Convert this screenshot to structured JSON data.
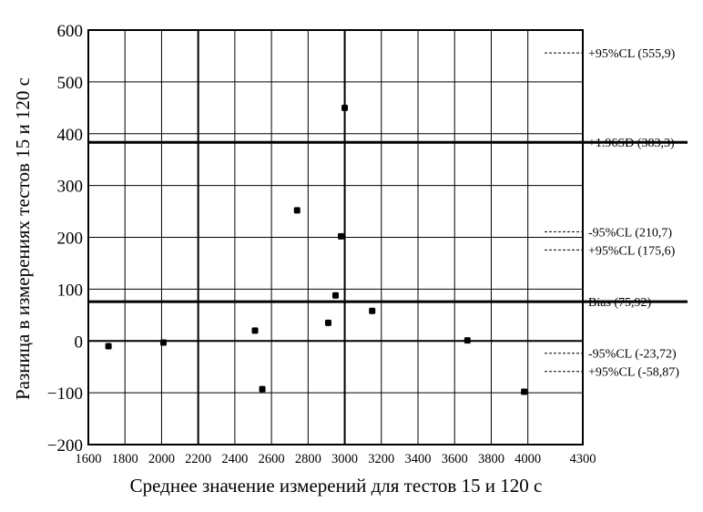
{
  "chart_data": {
    "type": "scatter",
    "xlabel": "Среднее значение измерений для тестов 15 и 120 с",
    "ylabel": "Разница в измерениях тестов 15 и 120 с",
    "xlim": [
      1600,
      4300
    ],
    "ylim": [
      -200,
      600
    ],
    "x_ticks": [
      "1600",
      "1800",
      "2000",
      "2200",
      "2400",
      "2600",
      "2800",
      "3000",
      "3200",
      "3400",
      "3600",
      "3800",
      "4000",
      "4300"
    ],
    "x_tick_values": [
      1600,
      1800,
      2000,
      2200,
      2400,
      2600,
      2800,
      3000,
      3200,
      3400,
      3600,
      3800,
      4000,
      4300
    ],
    "y_ticks": [
      "600",
      "500",
      "400",
      "300",
      "200",
      "100",
      "0",
      "−100",
      "−200"
    ],
    "y_tick_values": [
      600,
      500,
      400,
      300,
      200,
      100,
      0,
      -100,
      -200
    ],
    "grid": true,
    "points": [
      {
        "x": 1710,
        "y": -10
      },
      {
        "x": 2010,
        "y": -3
      },
      {
        "x": 2510,
        "y": 20
      },
      {
        "x": 2550,
        "y": -93
      },
      {
        "x": 2740,
        "y": 252
      },
      {
        "x": 2910,
        "y": 35
      },
      {
        "x": 2950,
        "y": 88
      },
      {
        "x": 2980,
        "y": 202
      },
      {
        "x": 3000,
        "y": 450
      },
      {
        "x": 3150,
        "y": 58
      },
      {
        "x": 3670,
        "y": 1
      },
      {
        "x": 3980,
        "y": -98
      }
    ],
    "reference_lines": [
      {
        "y": 383.3,
        "style": "solid",
        "label": "+1.96SD (383,3)"
      },
      {
        "y": 75.92,
        "style": "solid",
        "label": "Bias (75,92)"
      }
    ],
    "ci_marks": [
      {
        "y": 555.9,
        "label": "+95%CL (555,9)"
      },
      {
        "y": 210.7,
        "label": "-95%CL (210,7)"
      },
      {
        "y": 175.6,
        "label": "+95%CL (175,6)"
      },
      {
        "y": -23.72,
        "label": "-95%CL (-23,72)"
      },
      {
        "y": -58.87,
        "label": "+95%CL (-58,87)"
      }
    ]
  }
}
